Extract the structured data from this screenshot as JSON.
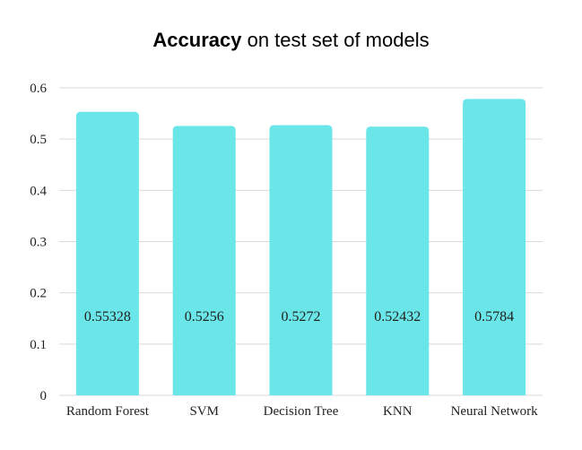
{
  "chart_data": {
    "type": "bar",
    "title_bold": "Accuracy",
    "title_rest": " on test set of models",
    "categories": [
      "Random Forest",
      "SVM",
      "Decision Tree",
      "KNN",
      "Neural Network"
    ],
    "values": [
      0.55328,
      0.5256,
      0.5272,
      0.52432,
      0.5784
    ],
    "value_labels": [
      "0.55328",
      "0.5256",
      "0.5272",
      "0.52432",
      "0.5784"
    ],
    "yticks": [
      "0",
      "0.1",
      "0.2",
      "0.3",
      "0.4",
      "0.5",
      "0.6"
    ],
    "ylim": [
      0,
      0.6
    ],
    "grid": true,
    "bar_color": "#6ae5e8",
    "grid_color": "#d9d9d9"
  }
}
